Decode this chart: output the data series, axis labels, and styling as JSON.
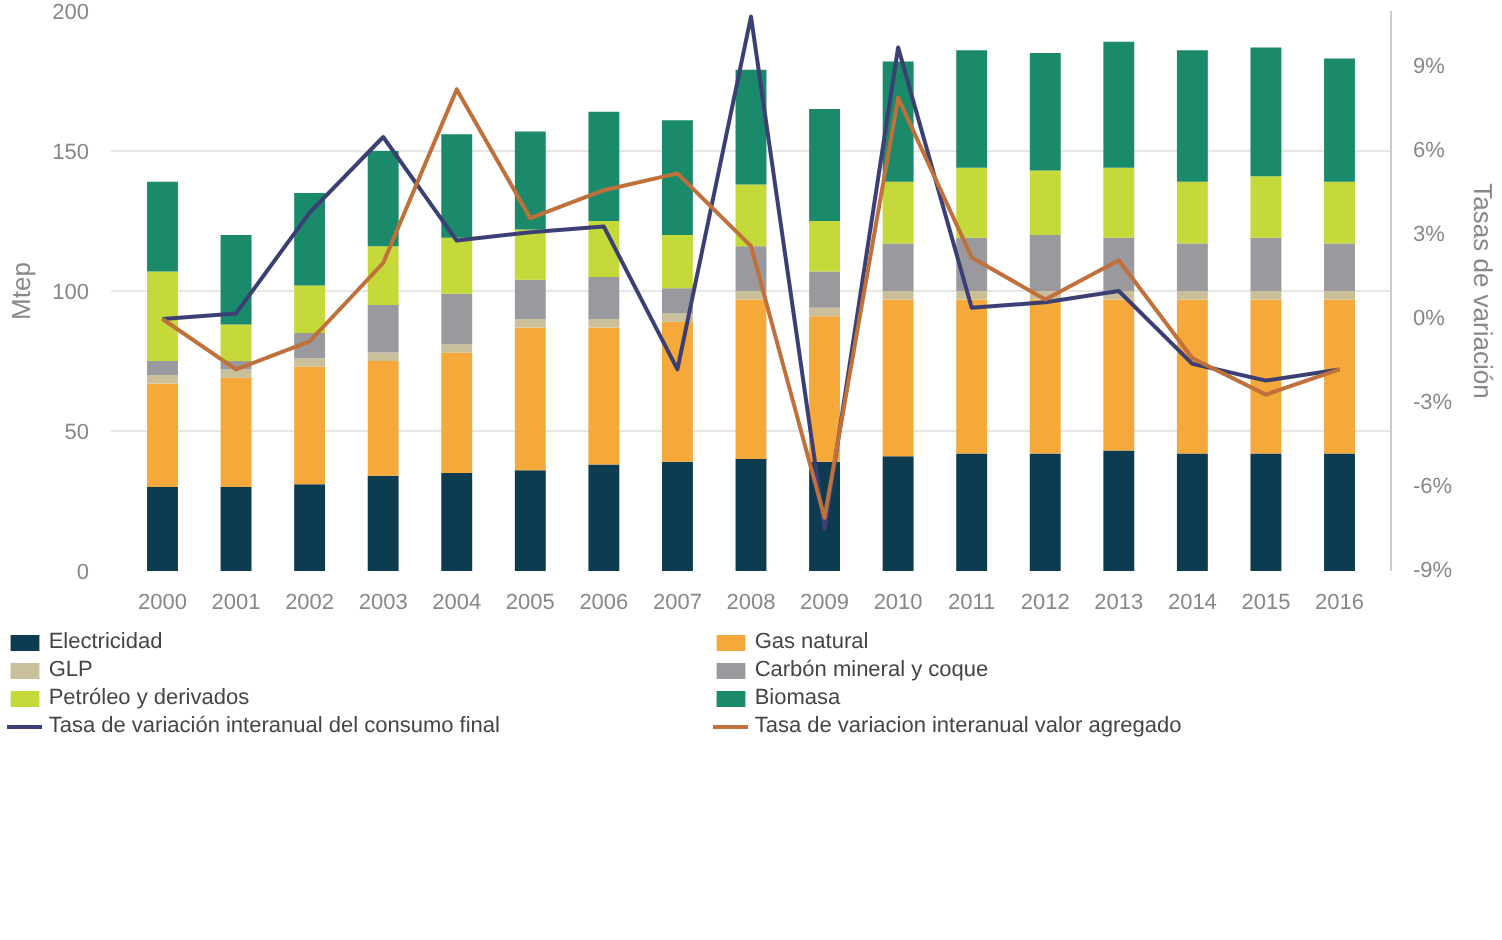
{
  "chart_data": {
    "type": "bar",
    "stacked": true,
    "ylabel": "Mtep",
    "y2label": "Tasas de variación",
    "categories": [
      "2000",
      "2001",
      "2002",
      "2003",
      "2004",
      "2005",
      "2006",
      "2007",
      "2008",
      "2009",
      "2010",
      "2011",
      "2012",
      "2013",
      "2014",
      "2015",
      "2016"
    ],
    "ylim": [
      0,
      200
    ],
    "yticks": [
      0,
      50,
      100,
      150,
      200
    ],
    "y2lim": [
      -9,
      11
    ],
    "y2ticks": [
      {
        "value": -9,
        "label": "-9%"
      },
      {
        "value": -6,
        "label": "-6%"
      },
      {
        "value": -3,
        "label": "-3%"
      },
      {
        "value": 0,
        "label": "0%"
      },
      {
        "value": 3,
        "label": "3%"
      },
      {
        "value": 6,
        "label": "6%"
      },
      {
        "value": 9,
        "label": "9%"
      }
    ],
    "grid": "y",
    "legend": "bottom",
    "line_style": "solid",
    "marker": "none",
    "series": [
      {
        "name": "Electricidad",
        "color": "#0d3b4f",
        "values": [
          30,
          30,
          31,
          34,
          35,
          36,
          38,
          39,
          40,
          39,
          41,
          42,
          42,
          43,
          42,
          42,
          42
        ]
      },
      {
        "name": "Gas natural",
        "color": "#f5a93b",
        "values": [
          37,
          39,
          42,
          41,
          43,
          51,
          49,
          50,
          57,
          52,
          56,
          55,
          55,
          54,
          55,
          55,
          55
        ]
      },
      {
        "name": "GLP",
        "color": "#c9bf9a",
        "values": [
          3,
          3,
          3,
          3,
          3,
          3,
          3,
          3,
          3,
          3,
          3,
          3,
          3,
          3,
          3,
          3,
          3
        ]
      },
      {
        "name": "Carbón mineral y coque",
        "color": "#9a9a9e",
        "values": [
          5,
          3,
          9,
          17,
          18,
          14,
          15,
          9,
          16,
          13,
          17,
          19,
          20,
          19,
          17,
          19,
          17
        ]
      },
      {
        "name": "Petróleo y derivados",
        "color": "#c5d93b",
        "values": [
          32,
          13,
          17,
          21,
          20,
          18,
          20,
          19,
          22,
          18,
          22,
          25,
          23,
          25,
          22,
          22,
          22
        ]
      },
      {
        "name": "Biomasa",
        "color": "#1a8a6a",
        "values": [
          32,
          32,
          33,
          34,
          37,
          35,
          39,
          41,
          41,
          40,
          43,
          42,
          42,
          45,
          47,
          46,
          44
        ]
      },
      {
        "name": "Tasa de variación interanual del consumo final",
        "type": "line",
        "axis": "y2",
        "color": "#3b3f73",
        "values": [
          0,
          0.2,
          3.8,
          6.5,
          2.8,
          3.1,
          3.3,
          -1.8,
          10.8,
          -7.5,
          9.7,
          0.4,
          0.6,
          1.0,
          -1.6,
          -2.2,
          -1.8
        ]
      },
      {
        "name": "Tasa de variacion interanual valor agregado",
        "type": "line",
        "axis": "y2",
        "color": "#c0703a",
        "values": [
          0,
          -1.8,
          -0.8,
          2.0,
          8.2,
          3.6,
          4.6,
          5.2,
          2.6,
          -7.1,
          7.9,
          2.2,
          0.7,
          2.1,
          -1.4,
          -2.7,
          -1.8
        ]
      }
    ]
  }
}
